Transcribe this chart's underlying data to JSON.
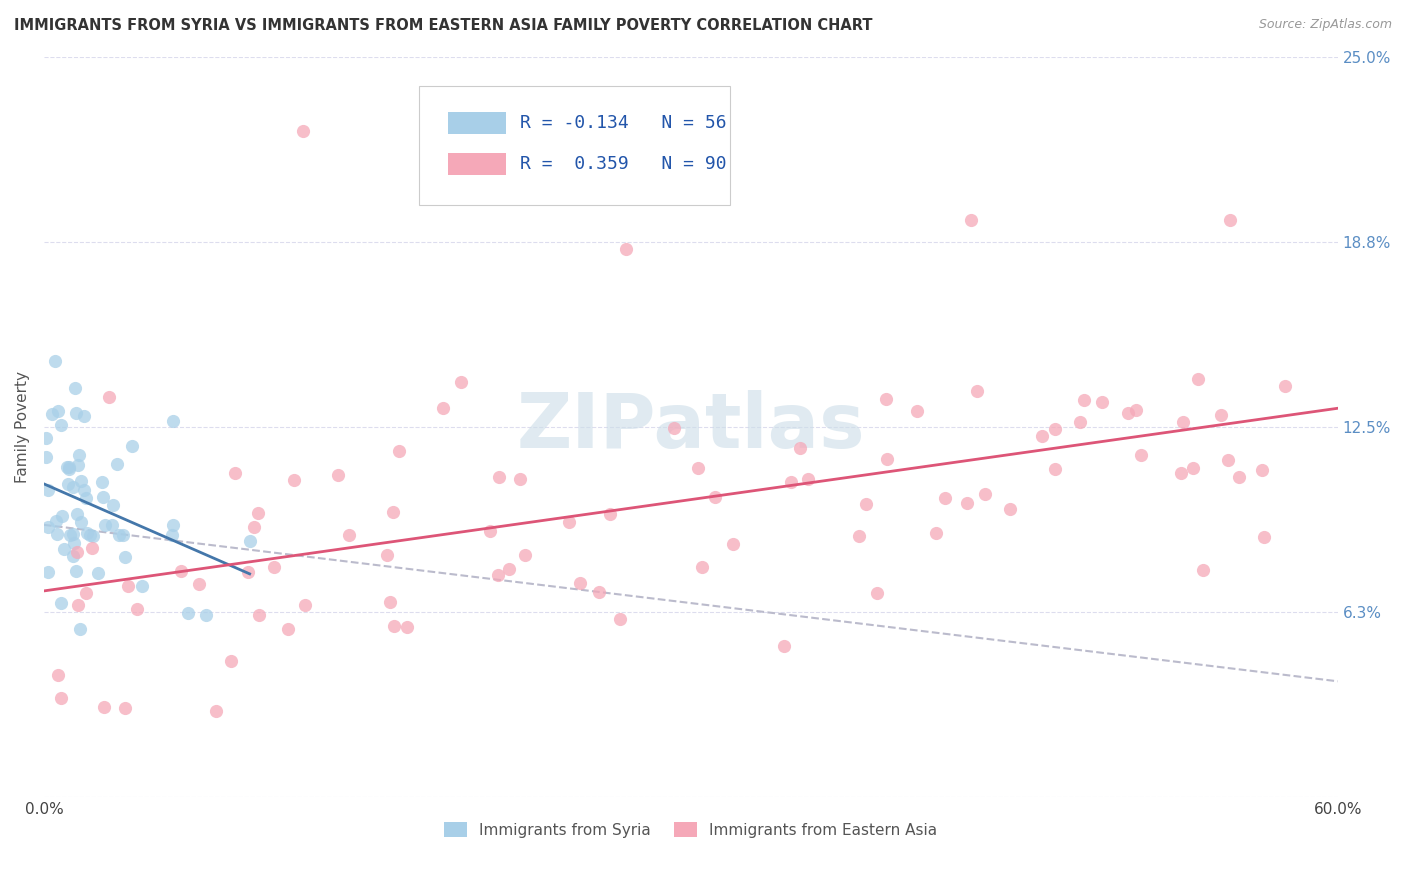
{
  "title": "IMMIGRANTS FROM SYRIA VS IMMIGRANTS FROM EASTERN ASIA FAMILY POVERTY CORRELATION CHART",
  "source": "Source: ZipAtlas.com",
  "ylabel": "Family Poverty",
  "xlim": [
    0.0,
    0.6
  ],
  "ylim": [
    0.0,
    0.25
  ],
  "xtick_vals": [
    0.0,
    0.1,
    0.2,
    0.3,
    0.4,
    0.5,
    0.6
  ],
  "xtick_labs": [
    "0.0%",
    "",
    "",
    "",
    "",
    "",
    "60.0%"
  ],
  "ytick_vals": [
    0.0,
    0.0625,
    0.125,
    0.1875,
    0.25
  ],
  "ytick_labs": [
    "",
    "6.3%",
    "12.5%",
    "18.8%",
    "25.0%"
  ],
  "legend_syria_R": "-0.134",
  "legend_syria_N": "56",
  "legend_east_R": "0.359",
  "legend_east_N": "90",
  "label_syria": "Immigrants from Syria",
  "label_east": "Immigrants from Eastern Asia",
  "color_syria": "#a8cfe8",
  "color_east_asia": "#f5a8b8",
  "color_trend_syria": "#4477aa",
  "color_trend_east_asia": "#dd5577",
  "color_dashed": "#bbbbcc",
  "color_ytick": "#5b8ec4",
  "watermark_color": "#ccdde8",
  "background_color": "#ffffff",
  "grid_color": "#ddddee",
  "title_color": "#333333",
  "source_color": "#999999"
}
